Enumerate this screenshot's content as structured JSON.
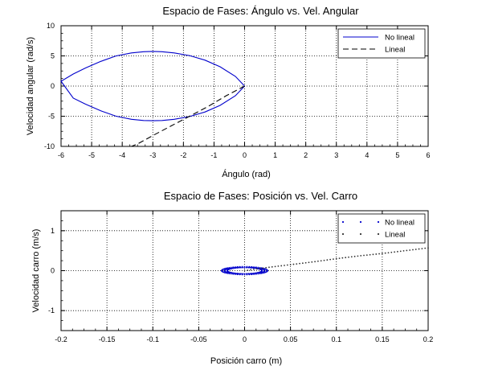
{
  "chart_data": [
    {
      "type": "line",
      "title": "Espacio de Fases: Ángulo vs. Vel. Angular",
      "xlabel": "Ángulo (rad)",
      "ylabel": "Velocidad angular (rad/s)",
      "xlim": [
        -6,
        6
      ],
      "ylim": [
        -10,
        10
      ],
      "xticks": [
        "-6",
        "-5",
        "-4",
        "-3",
        "-2",
        "-1",
        "0",
        "1",
        "2",
        "3",
        "4",
        "5",
        "6"
      ],
      "yticks": [
        "-10",
        "-5",
        "0",
        "5",
        "10"
      ],
      "grid": true,
      "legend_position": "top-right",
      "series": [
        {
          "name": "No lineal",
          "color": "#0000cc",
          "style": "solid",
          "x": [
            0.0,
            -0.3,
            -0.8,
            -1.3,
            -1.8,
            -2.3,
            -2.7,
            -3.0,
            -3.3,
            -3.7,
            -4.2,
            -4.7,
            -5.2,
            -5.6,
            -6.0,
            -5.6,
            -5.2,
            -4.7,
            -4.2,
            -3.7,
            -3.3,
            -3.0,
            -2.7,
            -2.3,
            -1.8,
            -1.3,
            -0.8,
            -0.3,
            0.0
          ],
          "y": [
            0.0,
            1.6,
            3.2,
            4.3,
            5.05,
            5.5,
            5.7,
            5.75,
            5.7,
            5.5,
            5.0,
            4.1,
            3.0,
            2.0,
            0.8,
            -2.0,
            -3.0,
            -4.1,
            -5.0,
            -5.5,
            -5.7,
            -5.75,
            -5.7,
            -5.5,
            -5.05,
            -4.3,
            -3.2,
            -1.6,
            0.0
          ]
        },
        {
          "name": "Lineal",
          "color": "#000000",
          "style": "dashed",
          "x": [
            0.0,
            -0.6,
            -1.2,
            -1.8,
            -2.4,
            -3.0,
            -3.5,
            -3.7
          ],
          "y": [
            0.0,
            -1.6,
            -3.4,
            -5.0,
            -6.6,
            -8.2,
            -9.6,
            -10.0
          ]
        }
      ]
    },
    {
      "type": "scatter",
      "title": "Espacio de Fases: Posición vs. Vel. Carro",
      "xlabel": "Posición carro (m)",
      "ylabel": "Velocidad carro (m/s)",
      "xlim": [
        -0.2,
        0.2
      ],
      "ylim": [
        -1.5,
        1.5
      ],
      "xticks": [
        "-0.2",
        "-0.15",
        "-0.1",
        "-0.05",
        "0",
        "0.05",
        "0.1",
        "0.15",
        "0.2"
      ],
      "yticks": [
        "-1",
        "0",
        "1"
      ],
      "grid": true,
      "legend_position": "top-right",
      "series": [
        {
          "name": "No lineal",
          "color": "#0000cc",
          "marker": "dot",
          "note": "closed loop centered at origin, x from -0.025 to 0.025, y from -0.1 to 0.1",
          "loop_x_range": [
            -0.025,
            0.025
          ],
          "loop_y_range": [
            -0.1,
            0.1
          ]
        },
        {
          "name": "Lineal",
          "color": "#333333",
          "marker": "dot",
          "x": [
            0.0,
            0.025,
            0.05,
            0.075,
            0.1,
            0.125,
            0.15,
            0.175,
            0.2
          ],
          "y": [
            0.0,
            0.08,
            0.15,
            0.22,
            0.3,
            0.37,
            0.43,
            0.5,
            0.57
          ]
        }
      ]
    }
  ]
}
